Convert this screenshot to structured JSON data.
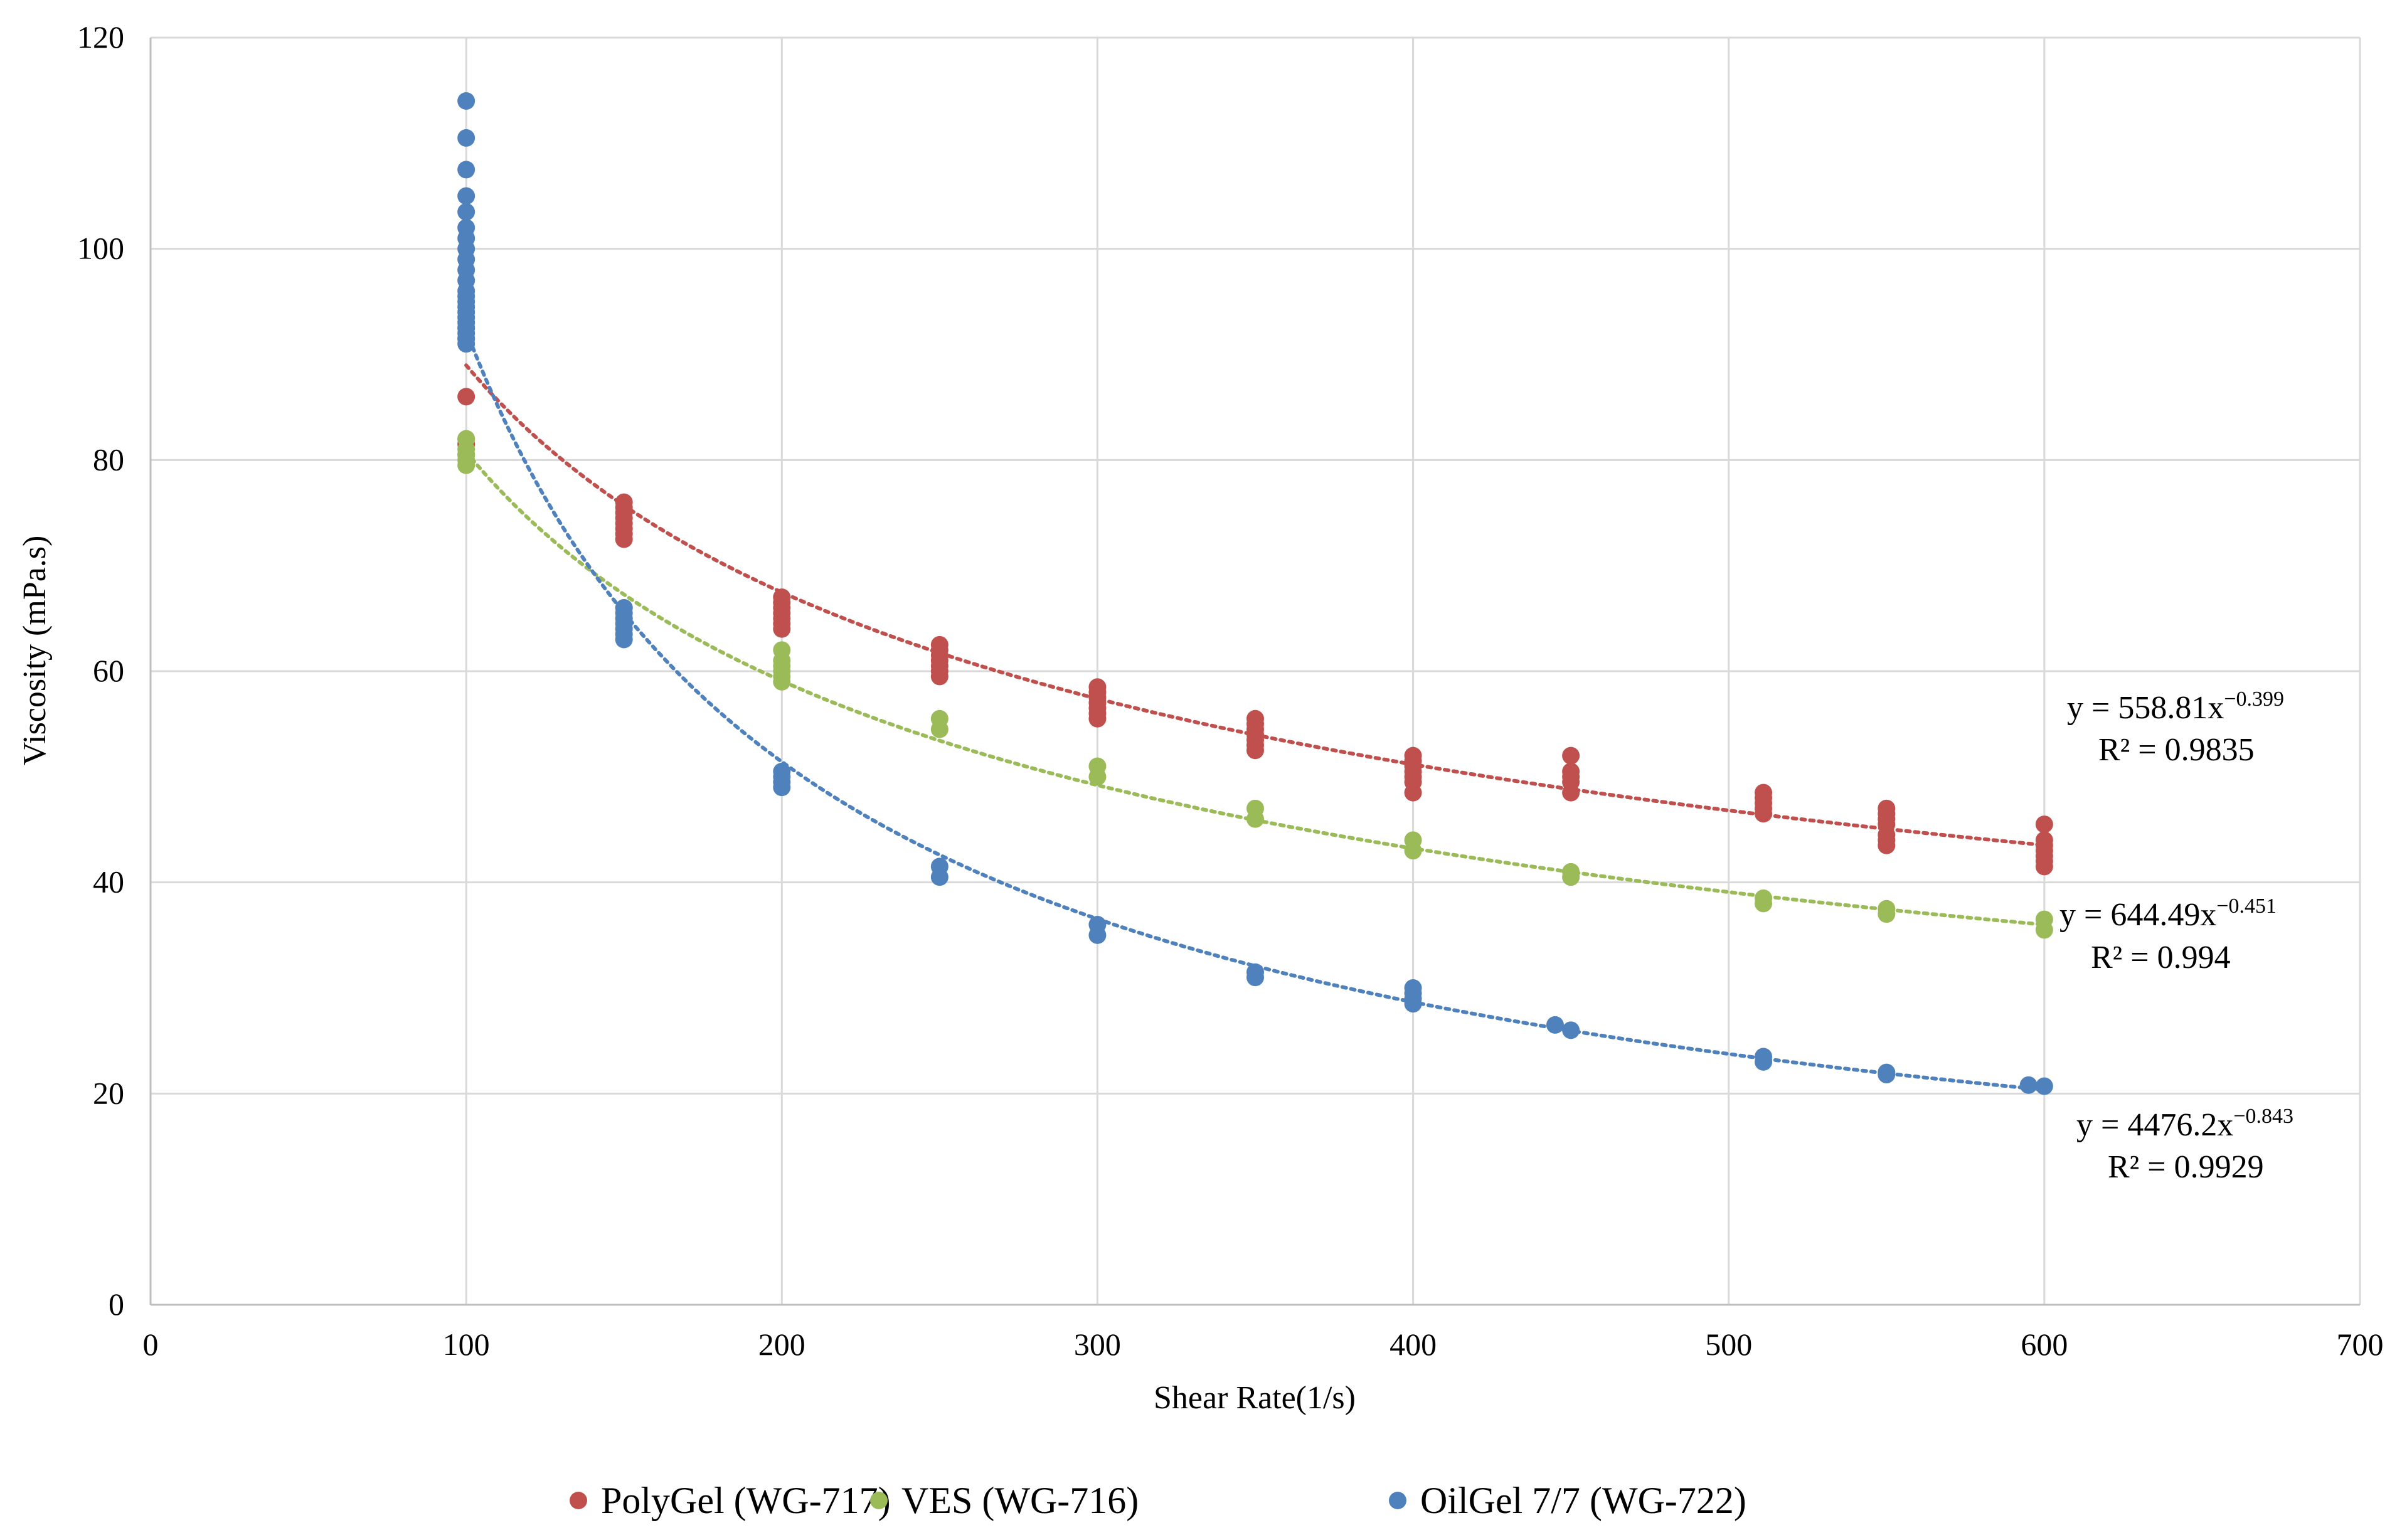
{
  "chart_data": {
    "type": "scatter",
    "title": "",
    "xlabel": "Shear Rate(1/s)",
    "ylabel": "Viscosity (mPa.s)",
    "xlim": [
      0,
      700
    ],
    "ylim": [
      0,
      120
    ],
    "xticks": [
      0,
      100,
      200,
      300,
      400,
      500,
      600,
      700
    ],
    "yticks": [
      0,
      20,
      40,
      60,
      80,
      100,
      120
    ],
    "grid": true,
    "legend_position": "bottom",
    "series": [
      {
        "name": "PolyGel (WG-717)",
        "color": "#C0504D",
        "x": [
          100,
          100,
          100,
          100,
          100,
          100,
          150,
          150,
          150,
          150,
          150,
          150,
          150,
          150,
          200,
          200,
          200,
          200,
          200,
          200,
          200,
          250,
          250,
          250,
          250,
          250,
          250,
          250,
          300,
          300,
          300,
          300,
          300,
          300,
          300,
          350,
          350,
          350,
          350,
          350,
          350,
          350,
          400,
          400,
          400,
          400,
          400,
          400,
          400,
          450,
          450,
          450,
          450,
          450,
          511,
          511,
          511,
          511,
          511,
          550,
          550,
          550,
          550,
          550,
          550,
          550,
          600,
          600,
          600,
          600,
          600,
          600,
          600
        ],
        "y": [
          91.5,
          92.5,
          86,
          82,
          81.5,
          80.5,
          76,
          75.5,
          75,
          74.5,
          74,
          73.5,
          73,
          72.5,
          67,
          66.5,
          66,
          65.5,
          65,
          64.5,
          64,
          62.5,
          62,
          61.5,
          61,
          60.5,
          60,
          59.5,
          58.5,
          58,
          57.5,
          57,
          56.5,
          56,
          55.5,
          55.5,
          55,
          54.5,
          54,
          53.5,
          53,
          52.5,
          52,
          51.5,
          51,
          50.5,
          50,
          49.5,
          48.5,
          52,
          50.5,
          50,
          49.5,
          48.5,
          48.5,
          48,
          47.5,
          47,
          46.5,
          47,
          46.5,
          46,
          45.5,
          44.5,
          44,
          43.5,
          45.5,
          44,
          43.5,
          43,
          42.5,
          42,
          41.5
        ],
        "trendline": {
          "type": "power",
          "a": 558.81,
          "b": -0.399
        },
        "equation": "y = 558.81x",
        "equation_exp": "−0.399",
        "r2": "R² = 0.9835"
      },
      {
        "name": "VES (WG-716)",
        "color": "#9BBB59",
        "x": [
          100,
          100,
          100,
          100,
          100,
          150,
          150,
          200,
          200,
          200,
          200,
          200,
          200,
          250,
          250,
          300,
          300,
          350,
          350,
          400,
          400,
          450,
          450,
          511,
          511,
          550,
          550,
          600,
          600
        ],
        "y": [
          82,
          81,
          80.5,
          80,
          79.5,
          66,
          65,
          62,
          61,
          60.5,
          60,
          59.5,
          59,
          55.5,
          54.5,
          51,
          50,
          47,
          46,
          44,
          43,
          41,
          40.5,
          38.5,
          38,
          37.5,
          37,
          36.5,
          35.5
        ],
        "trendline": {
          "type": "power",
          "a": 644.49,
          "b": -0.451
        },
        "equation": "y = 644.49x",
        "equation_exp": "−0.451",
        "r2": "R² = 0.994"
      },
      {
        "name": "OilGel 7/7 (WG-722)",
        "color": "#4F81BD",
        "x": [
          100,
          100,
          100,
          100,
          100,
          100,
          100,
          100,
          100,
          100,
          100,
          100,
          100,
          100,
          100,
          100,
          100,
          100,
          100,
          100,
          100,
          100,
          150,
          150,
          150,
          150,
          150,
          150,
          150,
          200,
          200,
          200,
          200,
          250,
          250,
          300,
          300,
          350,
          350,
          400,
          400,
          400,
          400,
          445,
          450,
          511,
          511,
          550,
          550,
          595,
          600
        ],
        "y": [
          114,
          110.5,
          107.5,
          105,
          103.5,
          102,
          101,
          100,
          99,
          98,
          97,
          96,
          95.5,
          95,
          94.5,
          94,
          93.5,
          93,
          92.5,
          92,
          91.5,
          91,
          66,
          65.5,
          65,
          64.5,
          64,
          63.5,
          63,
          50.5,
          50,
          49.5,
          49,
          41.5,
          40.5,
          36,
          35,
          31.5,
          31,
          30,
          29.5,
          29,
          28.5,
          26.5,
          26,
          23.5,
          23,
          22,
          21.8,
          20.8,
          20.7
        ],
        "trendline": {
          "type": "power",
          "a": 4476.2,
          "b": -0.843
        },
        "equation": "y = 4476.2x",
        "equation_exp": "−0.843",
        "r2": "R² = 0.9929"
      }
    ]
  }
}
